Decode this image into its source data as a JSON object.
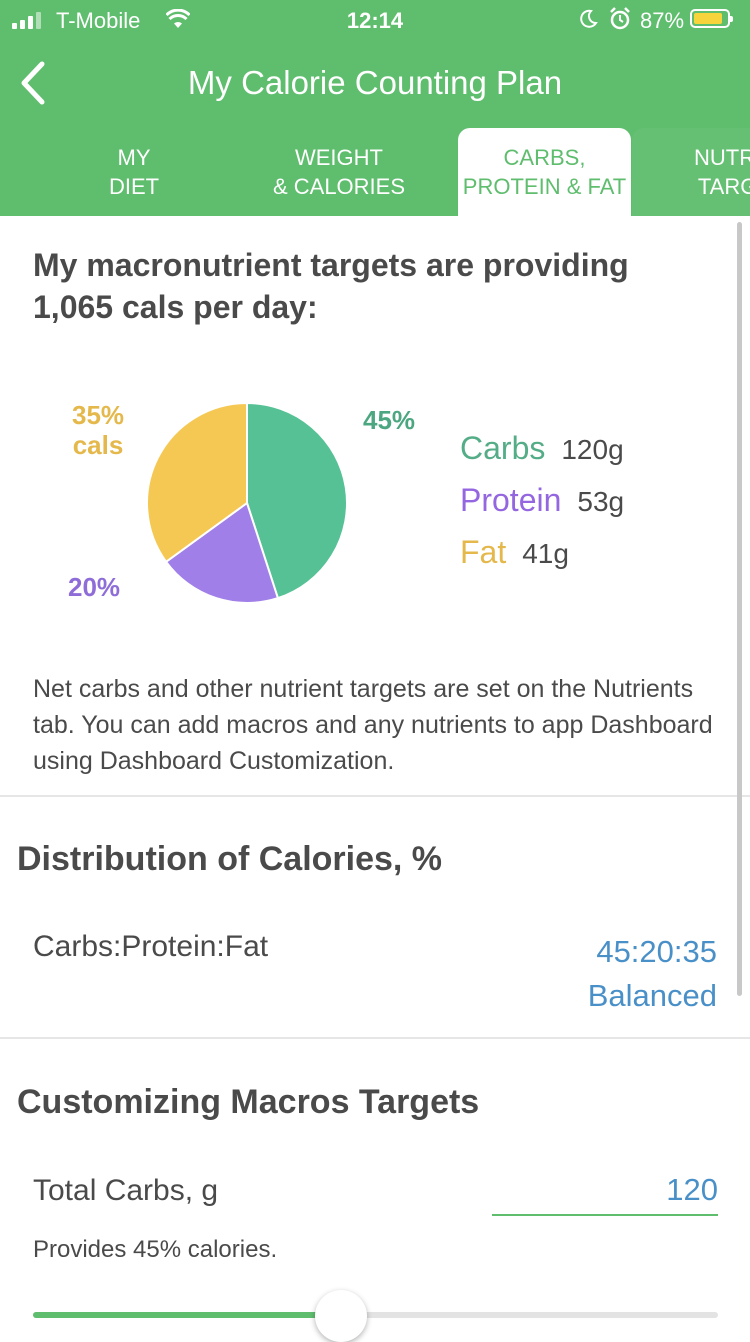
{
  "status_bar": {
    "carrier": "T-Mobile",
    "time": "12:14",
    "battery": "87%",
    "battery_level": 0.87
  },
  "header": {
    "title": "My Calorie Counting Plan",
    "tabs": [
      {
        "label": "MY\nDIET"
      },
      {
        "label": "WEIGHT\n& CALORIES"
      },
      {
        "label": "CARBS,\nPROTEIN & FAT"
      },
      {
        "label": "NUTRI\nTARG"
      }
    ],
    "active_tab": 2
  },
  "intro": {
    "heading": "My macronutrient targets are providing 1,065 cals per day:"
  },
  "colors": {
    "brand": "#5fbd6e",
    "carbs": "#55c195",
    "protein": "#a07fe8",
    "fat": "#f5c854",
    "link": "#4a90c8"
  },
  "chart_data": {
    "type": "pie",
    "slices": [
      {
        "name": "Carbs",
        "value": 45,
        "grams": "120g",
        "pct_label": "45%"
      },
      {
        "name": "Protein",
        "value": 20,
        "grams": "53g",
        "pct_label": "20%"
      },
      {
        "name": "Fat",
        "value": 35,
        "grams": "41g",
        "pct_label": "35%",
        "pct_sub": "cals"
      }
    ]
  },
  "note": "Net carbs and other nutrient targets are set on the Nutrients tab. You can add macros and any nutrients to app Dashboard using Dashboard Customization.",
  "distribution": {
    "heading": "Distribution of Calories, %",
    "row_label": "Carbs:Protein:Fat",
    "ratio": "45:20:35",
    "preset": "Balanced"
  },
  "customizing": {
    "heading": "Customizing Macros Targets",
    "field_label": "Total Carbs, g",
    "field_value": "120",
    "provides": "Provides 45% calories.",
    "slider_value": 0.45
  }
}
